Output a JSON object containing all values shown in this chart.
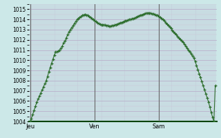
{
  "bg_color": "#cce8e8",
  "line_color": "#2d6e2d",
  "marker_color": "#2d6e2d",
  "ylim": [
    1004,
    1015.5
  ],
  "yticks": [
    1004,
    1005,
    1006,
    1007,
    1008,
    1009,
    1010,
    1011,
    1012,
    1013,
    1014,
    1015
  ],
  "day_labels": [
    "Jeu",
    "Ven",
    "Sam"
  ],
  "day_positions": [
    0,
    48,
    96
  ],
  "values": [
    1004.0,
    1004.3,
    1004.7,
    1005.1,
    1005.5,
    1005.9,
    1006.2,
    1006.5,
    1006.8,
    1007.1,
    1007.4,
    1007.7,
    1008.0,
    1008.4,
    1008.9,
    1009.3,
    1009.7,
    1010.1,
    1010.5,
    1010.8,
    1010.8,
    1010.9,
    1011.0,
    1011.2,
    1011.4,
    1011.7,
    1011.9,
    1012.2,
    1012.5,
    1012.8,
    1013.0,
    1013.2,
    1013.4,
    1013.6,
    1013.8,
    1014.0,
    1014.1,
    1014.2,
    1014.3,
    1014.4,
    1014.45,
    1014.5,
    1014.45,
    1014.4,
    1014.3,
    1014.2,
    1014.1,
    1014.0,
    1013.9,
    1013.8,
    1013.7,
    1013.6,
    1013.55,
    1013.5,
    1013.5,
    1013.45,
    1013.45,
    1013.4,
    1013.4,
    1013.35,
    1013.35,
    1013.4,
    1013.4,
    1013.45,
    1013.5,
    1013.55,
    1013.6,
    1013.65,
    1013.7,
    1013.75,
    1013.8,
    1013.85,
    1013.9,
    1013.95,
    1014.0,
    1014.0,
    1014.05,
    1014.1,
    1014.15,
    1014.2,
    1014.3,
    1014.35,
    1014.4,
    1014.45,
    1014.5,
    1014.55,
    1014.6,
    1014.6,
    1014.65,
    1014.6,
    1014.6,
    1014.55,
    1014.55,
    1014.5,
    1014.45,
    1014.4,
    1014.3,
    1014.2,
    1014.1,
    1014.0,
    1013.85,
    1013.7,
    1013.55,
    1013.4,
    1013.25,
    1013.1,
    1012.95,
    1012.8,
    1012.65,
    1012.5,
    1012.35,
    1012.2,
    1012.05,
    1011.9,
    1011.75,
    1011.6,
    1011.4,
    1011.2,
    1011.0,
    1010.8,
    1010.6,
    1010.4,
    1010.2,
    1009.9,
    1009.5,
    1009.1,
    1008.7,
    1008.3,
    1007.9,
    1007.5,
    1007.1,
    1006.7,
    1006.3,
    1005.9,
    1005.4,
    1004.9,
    1004.4,
    1004.0,
    1007.5
  ]
}
